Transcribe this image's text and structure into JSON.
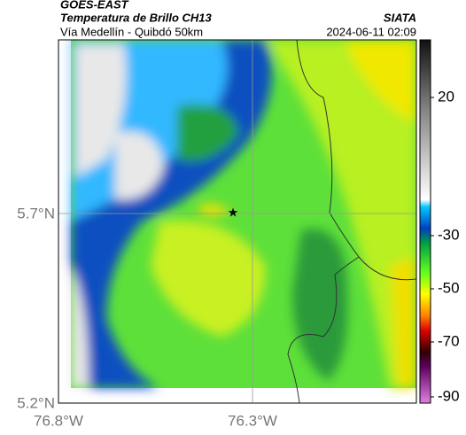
{
  "header": {
    "satellite": "GOES-EAST",
    "title": "Temperatura de Brillo CH13",
    "subtitle": "Vía Medellín - Quibdó 50km",
    "agency": "SIATA",
    "datetime": "2024-06-11 02:09"
  },
  "map": {
    "lat_labels": [
      "5.7°N",
      "5.2°N"
    ],
    "lon_labels": [
      "76.8°W",
      "76.3°W"
    ]
  },
  "colorbar": {
    "ticks": [
      "20",
      "-30",
      "-50",
      "-70",
      "-90"
    ]
  }
}
